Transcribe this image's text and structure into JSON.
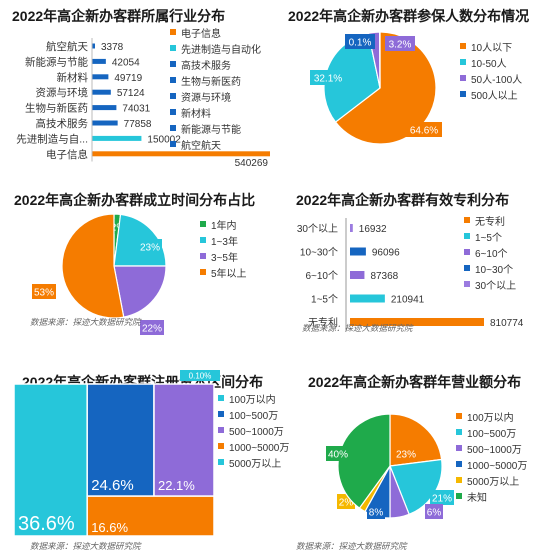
{
  "colors": {
    "orange": "#f57c00",
    "blue": "#1565c0",
    "cyan": "#26c6da",
    "purple": "#8e6bd8",
    "green": "#1faa4b",
    "yellow": "#f5b800",
    "purple_light": "#9b7be0"
  },
  "source_text": "数据来源：探迹大数据研究院",
  "chart_data": [
    {
      "type": "bar",
      "orientation": "horizontal",
      "title": "2022年高企新办客群所属行业分布",
      "categories": [
        "航空航天",
        "新能源与节能",
        "新材料",
        "资源与环境",
        "生物与新医药",
        "高技术服务",
        "先进制造与自...",
        "电子信息"
      ],
      "values": [
        3378,
        42054,
        49719,
        57124,
        74031,
        77858,
        150002,
        540269
      ],
      "value_labels": [
        "3378",
        "42054",
        "49719",
        "57124",
        "74031",
        "77858",
        "150002",
        "540269"
      ],
      "legend": [
        "电子信息",
        "先进制造与自动化",
        "高技术服务",
        "生物与新医药",
        "资源与环境",
        "新材料",
        "新能源与节能",
        "航空航天"
      ],
      "legend_position": "right"
    },
    {
      "type": "pie",
      "title": "2022年高企新办客群参保人数分布情况",
      "categories": [
        "10人以下",
        "10-50人",
        "50人-100人",
        "500人以上"
      ],
      "values": [
        64.6,
        32.1,
        3.2,
        0.1
      ],
      "value_labels": [
        "64.6%",
        "32.1%",
        "3.2%",
        "0.1%"
      ],
      "legend_position": "right"
    },
    {
      "type": "pie",
      "title": "2022年高企新办客群成立时间分布占比",
      "categories": [
        "1年内",
        "1~3年",
        "3~5年",
        "5年以上"
      ],
      "values": [
        2,
        23,
        22,
        53
      ],
      "value_labels": [
        "2%",
        "23%",
        "22%",
        "53%"
      ],
      "legend_position": "right"
    },
    {
      "type": "bar",
      "orientation": "horizontal",
      "title": "2022年高企新办客群有效专利分布",
      "categories": [
        "30个以上",
        "10~30个",
        "6~10个",
        "1~5个",
        "无专利"
      ],
      "values": [
        16932,
        96096,
        87368,
        210941,
        810774
      ],
      "value_labels": [
        "16932",
        "96096",
        "87368",
        "210941",
        "810774"
      ],
      "legend": [
        "无专利",
        "1~5个",
        "6~10个",
        "10~30个",
        "30个以上"
      ],
      "legend_position": "right"
    },
    {
      "type": "treemap",
      "title": "2022年高企新办客群注册资本区间分布",
      "categories": [
        "100万以内",
        "100~500万",
        "500~1000万",
        "1000~5000万",
        "5000万以上"
      ],
      "values": [
        36.6,
        24.6,
        22.1,
        16.6,
        0.1
      ],
      "value_labels": [
        "36.6%",
        "24.6%",
        "22.1%",
        "16.6%",
        "0.10%"
      ],
      "legend_position": "right"
    },
    {
      "type": "pie",
      "title": "2022年高企新办客群年营业额分布",
      "categories": [
        "100万以内",
        "100~500万",
        "500~1000万",
        "1000~5000万",
        "5000万以上",
        "未知"
      ],
      "values": [
        23,
        21,
        6,
        8,
        2,
        40
      ],
      "value_labels": [
        "23%",
        "21%",
        "6%",
        "8%",
        "2%",
        "40%"
      ],
      "legend_position": "right"
    }
  ]
}
